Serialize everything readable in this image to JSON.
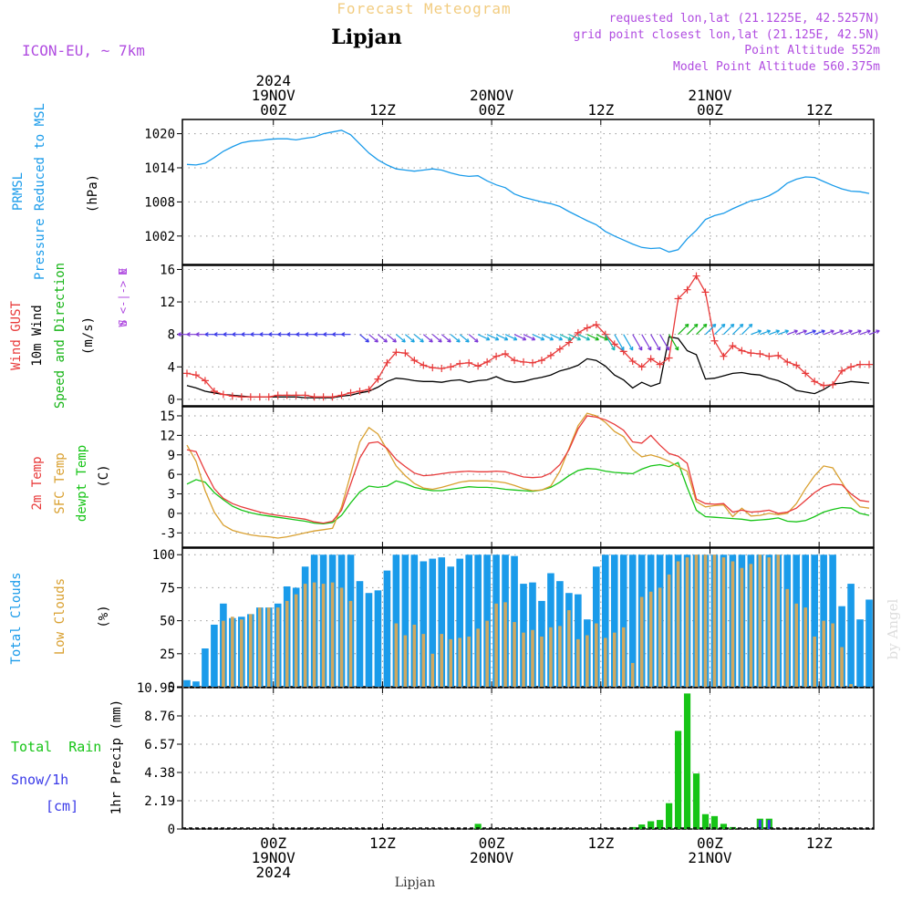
{
  "header": {
    "product": "Forecast Meteogram",
    "location": "Lipjan",
    "model": "ICON-EU, ~ 7km",
    "requested": "requested lon,lat (21.1225E, 42.5257N)",
    "grid_point": "grid point closest lon,lat (21.125E, 42.5N)",
    "point_altitude": "Point Altitude 552m",
    "model_altitude": "Model Point Altitude 560.375m",
    "footer_location": "Lipjan",
    "watermark": "by Angel"
  },
  "time_axis": {
    "top_labels": [
      {
        "hour": 0,
        "lines": [
          "2024",
          "19NOV",
          "00Z"
        ]
      },
      {
        "hour": 12,
        "lines": [
          "12Z"
        ]
      },
      {
        "hour": 24,
        "lines": [
          "20NOV",
          "00Z"
        ]
      },
      {
        "hour": 36,
        "lines": [
          "12Z"
        ]
      },
      {
        "hour": 48,
        "lines": [
          "21NOV",
          "00Z"
        ]
      },
      {
        "hour": 60,
        "lines": [
          "12Z"
        ]
      }
    ],
    "bottom_labels": [
      {
        "hour": 0,
        "lines": [
          "00Z",
          "19NOV",
          "2024"
        ]
      },
      {
        "hour": 12,
        "lines": [
          "12Z"
        ]
      },
      {
        "hour": 24,
        "lines": [
          "00Z",
          "20NOV"
        ]
      },
      {
        "hour": 36,
        "lines": [
          "12Z"
        ]
      },
      {
        "hour": 48,
        "lines": [
          "00Z",
          "21NOV"
        ]
      },
      {
        "hour": 60,
        "lines": [
          "12Z"
        ]
      }
    ]
  },
  "colors": {
    "pressure": "#1a9bea",
    "gust": "#e83a3a",
    "wind": "#000000",
    "direction": "#16b416",
    "temp": "#e83a3a",
    "sfc": "#d9a030",
    "dew": "#16c416",
    "total_clouds": "#1a9bea",
    "low_clouds": "#cfa860",
    "rain": "#16c416",
    "snow": "#3a3ae8",
    "info": "#b04ce0",
    "title": "#f2cc80"
  },
  "panels": {
    "pressure": {
      "labels": [
        "PRMSL",
        "Pressure Reduced to MSL"
      ],
      "unit": "(hPa)"
    },
    "wind": {
      "labels": [
        "Wind GUST",
        "10m Wind",
        "Speed and Direction"
      ],
      "unit": "(m/s)",
      "compass": [
        "N",
        "W <-|-> E",
        "S"
      ]
    },
    "temp": {
      "labels": [
        "2m Temp",
        "SFC Temp",
        "dewpt Temp"
      ],
      "unit": "(C)"
    },
    "clouds": {
      "labels": [
        "Total Clouds",
        "Low Clouds"
      ],
      "unit": "(%)"
    },
    "precip": {
      "labels": [
        "Total  Rain",
        "Snow/1h",
        "[cm]"
      ],
      "unit": "1hr Precip (mm)"
    }
  },
  "chart_data": [
    {
      "type": "line",
      "name": "pressure",
      "ylabel": "(hPa)",
      "ylim": [
        997,
        1022.5
      ],
      "yticks": [
        1002,
        1008,
        1014,
        1020
      ],
      "x": [
        -9.5,
        -8.5,
        -7.5,
        -6.5,
        -5.5,
        -4.5,
        -3.5,
        -2.5,
        -1.5,
        -0.5,
        0.5,
        1.5,
        2.5,
        3.5,
        4.5,
        5.5,
        6.5,
        7.5,
        8.5,
        9.5,
        10.5,
        11.5,
        12.5,
        13.5,
        14.5,
        15.5,
        16.5,
        17.5,
        18.5,
        19.5,
        20.5,
        21.5,
        22.5,
        23.5,
        24.5,
        25.5,
        26.5,
        27.5,
        28.5,
        29.5,
        30.5,
        31.5,
        32.5,
        33.5,
        34.5,
        35.5,
        36.5,
        37.5,
        38.5,
        39.5,
        40.5,
        41.5,
        42.5,
        43.5,
        44.5,
        45.5,
        46.5,
        47.5,
        48.5,
        49.5,
        50.5,
        51.5,
        52.5,
        53.5,
        54.5,
        55.5,
        56.5,
        57.5,
        58.5,
        59.5,
        60.5,
        61.5,
        62.5,
        63.5,
        64.5,
        65.5
      ],
      "y": [
        1014.6,
        1014.5,
        1014.8,
        1015.8,
        1016.9,
        1017.7,
        1018.4,
        1018.7,
        1018.8,
        1019.0,
        1019.1,
        1019.1,
        1018.9,
        1019.2,
        1019.4,
        1020.0,
        1020.3,
        1020.6,
        1019.8,
        1018.2,
        1016.6,
        1015.4,
        1014.5,
        1013.8,
        1013.6,
        1013.4,
        1013.6,
        1013.8,
        1013.6,
        1013.1,
        1012.7,
        1012.5,
        1012.6,
        1011.7,
        1011.0,
        1010.5,
        1009.4,
        1008.8,
        1008.4,
        1008.0,
        1007.7,
        1007.2,
        1006.3,
        1005.5,
        1004.7,
        1004.0,
        1002.8,
        1002.0,
        1001.3,
        1000.6,
        1000.0,
        999.8,
        999.9,
        999.2,
        999.6,
        1001.5,
        1003.0,
        1004.9,
        1005.6,
        1006.0,
        1006.8,
        1007.5,
        1008.2,
        1008.5,
        1009.1,
        1010.0,
        1011.3,
        1012.0,
        1012.4,
        1012.3,
        1011.6,
        1010.9,
        1010.3,
        1009.9,
        1009.8,
        1009.5
      ]
    },
    {
      "type": "line",
      "name": "wind",
      "ylabel": "(m/s)",
      "ylim": [
        -0.8,
        16.5
      ],
      "yticks": [
        0,
        4,
        8,
        12,
        16
      ],
      "x": [
        -9.5,
        -8.5,
        -7.5,
        -6.5,
        -5.5,
        -4.5,
        -3.5,
        -2.5,
        -1.5,
        -0.5,
        0.5,
        1.5,
        2.5,
        3.5,
        4.5,
        5.5,
        6.5,
        7.5,
        8.5,
        9.5,
        10.5,
        11.5,
        12.5,
        13.5,
        14.5,
        15.5,
        16.5,
        17.5,
        18.5,
        19.5,
        20.5,
        21.5,
        22.5,
        23.5,
        24.5,
        25.5,
        26.5,
        27.5,
        28.5,
        29.5,
        30.5,
        31.5,
        32.5,
        33.5,
        34.5,
        35.5,
        36.5,
        37.5,
        38.5,
        39.5,
        40.5,
        41.5,
        42.5,
        43.5,
        44.5,
        45.5,
        46.5,
        47.5,
        48.5,
        49.5,
        50.5,
        51.5,
        52.5,
        53.5,
        54.5,
        55.5,
        56.5,
        57.5,
        58.5,
        59.5,
        60.5,
        61.5,
        62.5,
        63.5,
        64.5,
        65.5
      ],
      "gust": [
        3.2,
        3.0,
        2.3,
        1.0,
        0.6,
        0.4,
        0.3,
        0.3,
        0.3,
        0.3,
        0.5,
        0.5,
        0.5,
        0.5,
        0.3,
        0.3,
        0.3,
        0.5,
        0.8,
        1.0,
        1.2,
        2.5,
        4.5,
        5.8,
        5.7,
        4.8,
        4.2,
        3.9,
        3.8,
        4.0,
        4.4,
        4.5,
        4.1,
        4.6,
        5.3,
        5.6,
        4.8,
        4.6,
        4.5,
        4.8,
        5.4,
        6.2,
        7.0,
        8.2,
        8.8,
        9.2,
        8.0,
        6.8,
        5.9,
        4.7,
        4.0,
        5.0,
        4.3,
        5.1,
        12.4,
        13.5,
        15.2,
        13.2,
        7.2,
        5.3,
        6.6,
        6.0,
        5.7,
        5.6,
        5.3,
        5.4,
        4.6,
        4.2,
        3.2,
        2.2,
        1.7,
        1.8,
        3.5,
        4.0,
        4.3,
        4.3
      ],
      "speed": [
        1.7,
        1.4,
        1.0,
        0.8,
        0.6,
        0.5,
        0.4,
        0.3,
        0.3,
        0.3,
        0.3,
        0.3,
        0.3,
        0.2,
        0.2,
        0.2,
        0.2,
        0.4,
        0.5,
        0.8,
        1.0,
        1.5,
        2.2,
        2.6,
        2.5,
        2.3,
        2.2,
        2.2,
        2.1,
        2.3,
        2.4,
        2.1,
        2.3,
        2.4,
        2.8,
        2.3,
        2.1,
        2.2,
        2.5,
        2.7,
        3.0,
        3.5,
        3.8,
        4.2,
        5.0,
        4.8,
        4.1,
        3.0,
        2.4,
        1.4,
        2.1,
        1.6,
        2.0,
        7.7,
        7.5,
        6.0,
        5.5,
        2.5,
        2.6,
        2.9,
        3.2,
        3.3,
        3.1,
        3.0,
        2.6,
        2.3,
        1.8,
        1.1,
        0.9,
        0.7,
        1.2,
        1.9,
        2.0,
        2.2,
        2.1,
        2.0
      ],
      "arrow_y": 8
    },
    {
      "type": "line",
      "name": "temperature",
      "ylabel": "(C)",
      "ylim": [
        -5.2,
        16.4
      ],
      "yticks": [
        -3,
        0,
        3,
        6,
        9,
        12,
        15
      ],
      "x": [
        -9.5,
        -8.5,
        -7.5,
        -6.5,
        -5.5,
        -4.5,
        -3.5,
        -2.5,
        -1.5,
        -0.5,
        0.5,
        1.5,
        2.5,
        3.5,
        4.5,
        5.5,
        6.5,
        7.5,
        8.5,
        9.5,
        10.5,
        11.5,
        12.5,
        13.5,
        14.5,
        15.5,
        16.5,
        17.5,
        18.5,
        19.5,
        20.5,
        21.5,
        22.5,
        23.5,
        24.5,
        25.5,
        26.5,
        27.5,
        28.5,
        29.5,
        30.5,
        31.5,
        32.5,
        33.5,
        34.5,
        35.5,
        36.5,
        37.5,
        38.5,
        39.5,
        40.5,
        41.5,
        42.5,
        43.5,
        44.5,
        45.5,
        46.5,
        47.5,
        48.5,
        49.5,
        50.5,
        51.5,
        52.5,
        53.5,
        54.5,
        55.5,
        56.5,
        57.5,
        58.5,
        59.5,
        60.5,
        61.5,
        62.5,
        63.5,
        64.5,
        65.5
      ],
      "t2m": [
        9.8,
        9.5,
        6.5,
        3.8,
        2.3,
        1.5,
        1.0,
        0.6,
        0.2,
        -0.1,
        -0.3,
        -0.5,
        -0.7,
        -0.9,
        -1.3,
        -1.5,
        -1.2,
        0.5,
        4.5,
        8.5,
        10.8,
        11.0,
        10.0,
        8.3,
        7.2,
        6.2,
        5.8,
        5.9,
        6.1,
        6.3,
        6.4,
        6.5,
        6.4,
        6.4,
        6.5,
        6.4,
        6.0,
        5.6,
        5.5,
        5.6,
        6.2,
        7.5,
        9.8,
        13.0,
        15.0,
        14.8,
        14.4,
        13.7,
        12.8,
        11.0,
        10.8,
        12.0,
        10.5,
        9.2,
        8.8,
        7.7,
        2.2,
        1.5,
        1.4,
        1.5,
        0.2,
        0.5,
        0.2,
        0.3,
        0.5,
        0.0,
        0.2,
        0.8,
        2.0,
        3.2,
        4.1,
        4.5,
        4.4,
        3.0,
        2.0,
        1.8
      ],
      "sfc": [
        10.5,
        8.0,
        3.5,
        0.2,
        -1.8,
        -2.6,
        -3.0,
        -3.3,
        -3.5,
        -3.6,
        -3.8,
        -3.6,
        -3.3,
        -3.0,
        -2.7,
        -2.5,
        -2.3,
        1.0,
        6.0,
        11.0,
        13.2,
        12.2,
        9.8,
        7.3,
        5.8,
        4.6,
        3.9,
        3.7,
        4.0,
        4.4,
        4.8,
        5.0,
        5.0,
        5.0,
        4.9,
        4.7,
        4.3,
        3.8,
        3.5,
        3.6,
        4.2,
        6.5,
        10.0,
        13.5,
        15.4,
        15.0,
        14.0,
        12.6,
        11.8,
        9.8,
        8.7,
        9.0,
        8.6,
        8.0,
        7.2,
        6.5,
        1.8,
        1.0,
        1.2,
        1.3,
        -0.5,
        0.8,
        -0.4,
        -0.3,
        0.0,
        -0.2,
        0.0,
        1.5,
        3.8,
        5.8,
        7.3,
        7.0,
        4.8,
        2.5,
        1.0,
        0.8
      ],
      "dew": [
        4.5,
        5.2,
        4.8,
        3.2,
        2.1,
        1.1,
        0.5,
        0.1,
        -0.2,
        -0.4,
        -0.6,
        -0.8,
        -1.0,
        -1.2,
        -1.5,
        -1.6,
        -1.4,
        -0.3,
        1.6,
        3.3,
        4.2,
        4.0,
        4.2,
        5.0,
        4.6,
        4.0,
        3.7,
        3.5,
        3.5,
        3.7,
        3.9,
        4.1,
        4.0,
        4.0,
        3.9,
        3.7,
        3.6,
        3.5,
        3.4,
        3.6,
        4.0,
        4.8,
        5.8,
        6.6,
        6.9,
        6.8,
        6.5,
        6.3,
        6.2,
        6.1,
        6.8,
        7.3,
        7.5,
        7.2,
        7.8,
        4.0,
        0.5,
        -0.5,
        -0.6,
        -0.7,
        -0.8,
        -0.9,
        -1.1,
        -1.0,
        -0.9,
        -0.7,
        -1.2,
        -1.3,
        -1.1,
        -0.5,
        0.2,
        0.6,
        0.9,
        0.8,
        0.0,
        -0.3
      ]
    },
    {
      "type": "bar",
      "name": "clouds",
      "ylabel": "(%)",
      "ylim": [
        0,
        105
      ],
      "yticks": [
        0,
        25,
        50,
        75,
        100
      ],
      "x": [
        -9.5,
        -8.5,
        -7.5,
        -6.5,
        -5.5,
        -4.5,
        -3.5,
        -2.5,
        -1.5,
        -0.5,
        0.5,
        1.5,
        2.5,
        3.5,
        4.5,
        5.5,
        6.5,
        7.5,
        8.5,
        9.5,
        10.5,
        11.5,
        12.5,
        13.5,
        14.5,
        15.5,
        16.5,
        17.5,
        18.5,
        19.5,
        20.5,
        21.5,
        22.5,
        23.5,
        24.5,
        25.5,
        26.5,
        27.5,
        28.5,
        29.5,
        30.5,
        31.5,
        32.5,
        33.5,
        34.5,
        35.5,
        36.5,
        37.5,
        38.5,
        39.5,
        40.5,
        41.5,
        42.5,
        43.5,
        44.5,
        45.5,
        46.5,
        47.5,
        48.5,
        49.5,
        50.5,
        51.5,
        52.5,
        53.5,
        54.5,
        55.5,
        56.5,
        57.5,
        58.5,
        59.5,
        60.5,
        61.5,
        62.5,
        63.5,
        64.5,
        65.5
      ],
      "total": [
        5,
        4,
        29,
        47,
        63,
        52,
        53,
        55,
        60,
        60,
        63,
        76,
        75,
        91,
        100,
        100,
        100,
        100,
        100,
        80,
        71,
        73,
        88,
        100,
        100,
        100,
        95,
        97,
        98,
        91,
        97,
        100,
        100,
        100,
        100,
        100,
        99,
        78,
        79,
        65,
        86,
        80,
        71,
        70,
        51,
        91,
        100,
        100,
        100,
        100,
        100,
        100,
        100,
        100,
        100,
        100,
        100,
        100,
        100,
        100,
        100,
        100,
        100,
        100,
        100,
        100,
        100,
        100,
        100,
        100,
        100,
        100,
        61,
        78,
        51,
        66
      ],
      "low": [
        0,
        0,
        0,
        0,
        50,
        53,
        51,
        55,
        60,
        60,
        60,
        65,
        70,
        78,
        79,
        78,
        79,
        75,
        65,
        0,
        0,
        0,
        0,
        48,
        39,
        47,
        40,
        25,
        40,
        36,
        37,
        38,
        44,
        50,
        63,
        64,
        49,
        41,
        43,
        38,
        45,
        46,
        58,
        36,
        39,
        48,
        37,
        41,
        45,
        18,
        68,
        72,
        75,
        85,
        95,
        98,
        100,
        100,
        100,
        98,
        95,
        90,
        93,
        100,
        98,
        100,
        74,
        63,
        60,
        38,
        50,
        48,
        30,
        2,
        0,
        0
      ]
    },
    {
      "type": "bar",
      "name": "precip",
      "ylabel": "1hr Precip (mm)",
      "ylim": [
        0,
        10.95
      ],
      "yticks": [
        0,
        2.19,
        4.38,
        6.57,
        8.76,
        10.95
      ],
      "x": [
        22.5,
        39.5,
        40.5,
        41.5,
        42.5,
        43.5,
        44.5,
        45.5,
        46.5,
        47.5,
        48.5,
        49.5,
        50.5,
        51.5,
        52.5,
        53.5,
        54.5
      ],
      "rain": [
        0.4,
        0.15,
        0.35,
        0.6,
        0.7,
        2.0,
        7.6,
        10.5,
        4.3,
        1.15,
        1.0,
        0.4,
        0.15,
        0.0,
        0.0,
        0.8,
        0.8
      ],
      "snow": [
        0,
        0,
        0,
        0,
        0,
        0,
        0,
        0,
        0,
        0,
        0,
        0,
        0,
        0,
        0,
        0.7,
        0.7
      ]
    }
  ]
}
